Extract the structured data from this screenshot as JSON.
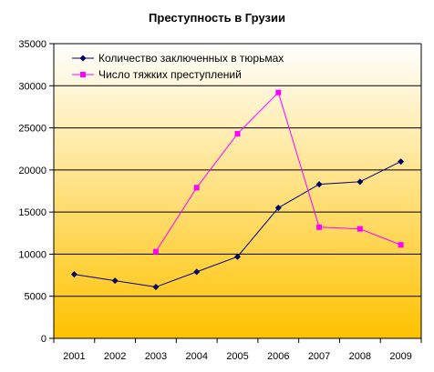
{
  "chart_data": {
    "type": "line",
    "title": "Преступность в Грузии",
    "xlabel": "",
    "ylabel": "",
    "x": [
      "2001",
      "2002",
      "2003",
      "2004",
      "2005",
      "2006",
      "2007",
      "2008",
      "2009"
    ],
    "ylim": [
      0,
      35000
    ],
    "yticks": [
      0,
      5000,
      10000,
      15000,
      20000,
      25000,
      30000,
      35000
    ],
    "grid": true,
    "legend_position": "top-left",
    "background": {
      "top": "#ffffff",
      "bottom": "#ffc200"
    },
    "series": [
      {
        "name": "Количество заключенных в тюрьмах",
        "color": "#000066",
        "marker": "diamond",
        "values": [
          7600,
          6850,
          6100,
          7900,
          9700,
          15500,
          18300,
          18600,
          21000
        ]
      },
      {
        "name": "Число тяжких преступлений",
        "color": "#ff00ff",
        "marker": "square",
        "values": [
          null,
          null,
          10300,
          17900,
          24300,
          29200,
          13200,
          13000,
          11100
        ]
      }
    ]
  }
}
